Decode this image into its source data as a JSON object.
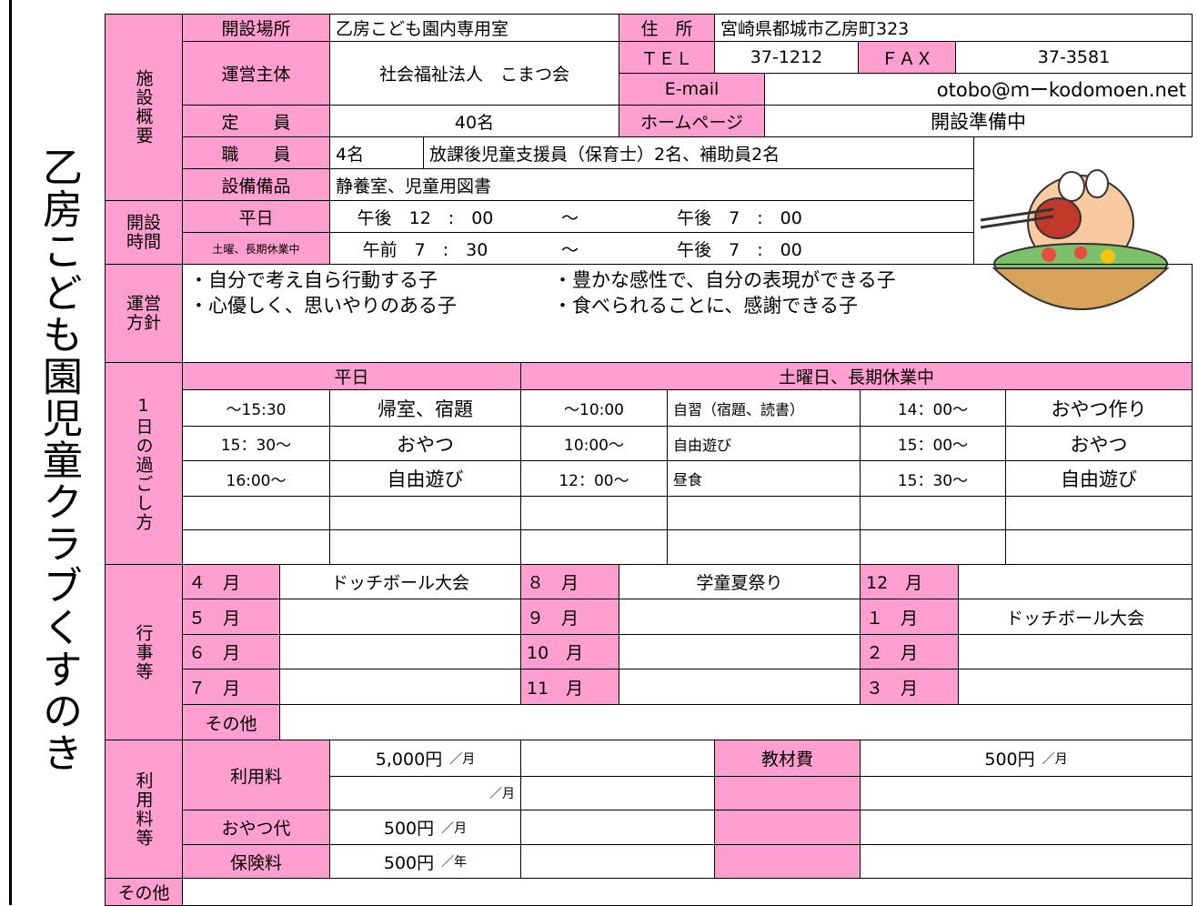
{
  "title": "乙房こども園児童クラブくすのき",
  "overview": {
    "heading": "施設概要",
    "location_label": "開設場所",
    "location": "乙房こども園内専用室",
    "address_label": "住　所",
    "address": "宮崎県都城市乙房町323",
    "operator_label": "運営主体",
    "operator": "社会福祉法人　こまつ会",
    "tel_label": "ＴＥＬ",
    "tel": "37-1212",
    "fax_label": "ＦＡＸ",
    "fax": "37-3581",
    "email_label": "E-mail",
    "email": "otobo@ｍーkodomoen.net",
    "capacity_label": "定　　員",
    "capacity": "40名",
    "homepage_label": "ホームページ",
    "homepage": "開設準備中",
    "staff_label": "職　　員",
    "staff_count": "4名",
    "staff_detail": "放課後児童支援員（保育士）2名、補助員2名",
    "equipment_label": "設備備品",
    "equipment": "静養室、児童用図書"
  },
  "hours": {
    "heading": "開設時間",
    "rows": [
      {
        "label": "平日",
        "start": "午後　12　:　00",
        "sep": "～",
        "end": "午後　7　:　00"
      },
      {
        "label": "土曜、長期休業中",
        "start": "午前　7　:　30",
        "sep": "～",
        "end": "午後　7　:　00"
      }
    ]
  },
  "policy": {
    "heading": "運営方針",
    "items": [
      "・自分で考え自ら行動する子",
      "・豊かな感性で、自分の表現ができる子",
      "・心優しく、思いやりのある子",
      "・食べられることに、感謝できる子"
    ]
  },
  "daily": {
    "heading": "1日の過ごし方",
    "weekday_label": "平日",
    "holiday_label": "土曜日、長期休業中",
    "rows": [
      [
        "～15:30",
        "帰室、宿題",
        "～10:00",
        "自習（宿題、読書）",
        "14：00～",
        "おやつ作り"
      ],
      [
        "15：30～",
        "おやつ",
        "10:00～",
        "自由遊び",
        "15：00～",
        "おやつ"
      ],
      [
        "16:00～",
        "自由遊び",
        "12：00～",
        "昼食",
        "15：30～",
        "自由遊び"
      ]
    ]
  },
  "events": {
    "heading": "行事等",
    "months": [
      {
        "month": "４　月",
        "event": "ドッチボール大会"
      },
      {
        "month": "５　月"
      },
      {
        "month": "６　月"
      },
      {
        "month": "７　月"
      },
      {
        "month": "８　月",
        "event": "学童夏祭り"
      },
      {
        "month": "９　月"
      },
      {
        "month": "10　月"
      },
      {
        "month": "11　月"
      },
      {
        "month": "12　月"
      },
      {
        "month": "１　月",
        "event": "ドッチボール大会"
      },
      {
        "month": "２　月"
      },
      {
        "month": "３　月"
      }
    ],
    "other_label": "その他"
  },
  "fees": {
    "heading": "利用料等",
    "usage_label": "利用料",
    "usage_amount": "5,000円",
    "usage_unit": "／月",
    "usage_unit2": "／月",
    "snack_label": "おやつ代",
    "snack_amount": "500円",
    "snack_unit": "／月",
    "insurance_label": "保険料",
    "insurance_amount": "500円",
    "insurance_unit": "／年",
    "materials_label": "教材費",
    "materials_amount": "500円",
    "materials_unit": "／月"
  },
  "footer_other": "その他"
}
